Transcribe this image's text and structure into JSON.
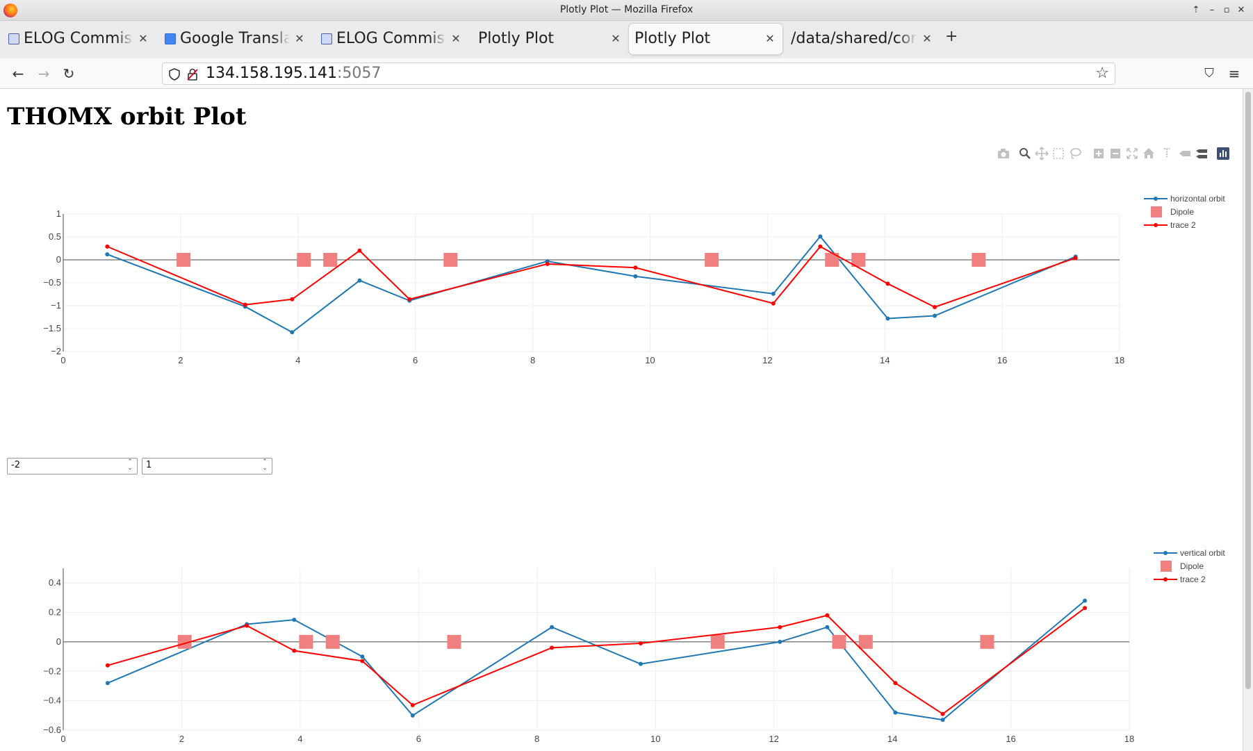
{
  "window": {
    "title": "Plotly Plot — Mozilla Firefox"
  },
  "tabs": [
    {
      "label": "ELOG Commissioning",
      "favicon": "elog-icon",
      "active": false
    },
    {
      "label": "Google Translate",
      "favicon": "google-translate-icon",
      "active": false
    },
    {
      "label": "ELOG Commissioning",
      "favicon": "elog-icon",
      "active": false
    },
    {
      "label": "Plotly Plot",
      "favicon": "",
      "active": false
    },
    {
      "label": "Plotly Plot",
      "favicon": "",
      "active": true
    },
    {
      "label": "/data/shared/commissioning",
      "favicon": "",
      "active": false
    }
  ],
  "url": {
    "host": "134.158.195.141",
    "port": ":5057"
  },
  "page": {
    "title": "THOMX orbit Plot"
  },
  "inputs": {
    "ymin": "-2",
    "ymax": "1"
  },
  "colors": {
    "orbit": "#1f77b4",
    "trace2": "#ff0000",
    "dipole": "#f08080"
  },
  "chart_data": [
    {
      "type": "line",
      "xlim": [
        0,
        18
      ],
      "ylim": [
        -2,
        1
      ],
      "xticks": [
        "0",
        "2",
        "4",
        "6",
        "8",
        "10",
        "12",
        "14",
        "16",
        "18"
      ],
      "yticks": [
        "1",
        "0.5",
        "0",
        "−0.5",
        "−1",
        "−1.5",
        "−2"
      ],
      "yticks_values": [
        1,
        0.5,
        0,
        -0.5,
        -1,
        -1.5,
        -2
      ],
      "grid": true,
      "legend_position": "top-right",
      "series": [
        {
          "name": "horizontal orbit",
          "color": "#1f77b4",
          "x": [
            0.75,
            3.1,
            3.9,
            5.05,
            5.9,
            8.25,
            9.75,
            12.1,
            12.9,
            14.05,
            14.85,
            17.25
          ],
          "y": [
            0.12,
            -1.02,
            -1.58,
            -0.45,
            -0.89,
            -0.03,
            -0.36,
            -0.74,
            0.51,
            -1.28,
            -1.22,
            0.07
          ]
        },
        {
          "name": "Dipole",
          "color": "#f08080",
          "marker": "square",
          "x": [
            2.05,
            4.1,
            4.55,
            6.6,
            11.05,
            13.1,
            13.55,
            15.6
          ],
          "y": [
            0,
            0,
            0,
            0,
            0,
            0,
            0,
            0
          ]
        },
        {
          "name": "trace 2",
          "color": "#ff0000",
          "x": [
            0.75,
            3.1,
            3.9,
            5.05,
            5.9,
            8.25,
            9.75,
            12.1,
            12.9,
            14.05,
            14.85,
            17.25
          ],
          "y": [
            0.29,
            -0.98,
            -0.86,
            0.2,
            -0.86,
            -0.09,
            -0.17,
            -0.95,
            0.29,
            -0.52,
            -1.03,
            0.04
          ]
        }
      ]
    },
    {
      "type": "line",
      "xlim": [
        0,
        18
      ],
      "ylim": [
        -0.6,
        0.5
      ],
      "xticks": [
        "0",
        "2",
        "4",
        "6",
        "8",
        "10",
        "12",
        "14",
        "16",
        "18"
      ],
      "yticks": [
        "0.4",
        "0.2",
        "0",
        "−0.2",
        "−0.4",
        "−0.6"
      ],
      "yticks_values": [
        0.4,
        0.2,
        0,
        -0.2,
        -0.4,
        -0.6
      ],
      "grid": true,
      "legend_position": "top-right",
      "series": [
        {
          "name": "vertical orbit",
          "color": "#1f77b4",
          "x": [
            0.75,
            3.1,
            3.9,
            5.05,
            5.9,
            8.25,
            9.75,
            12.1,
            12.9,
            14.05,
            14.85,
            17.25
          ],
          "y": [
            -0.28,
            0.12,
            0.15,
            -0.1,
            -0.5,
            0.1,
            -0.15,
            0.0,
            0.1,
            -0.48,
            -0.53,
            0.28
          ]
        },
        {
          "name": "Dipole",
          "color": "#f08080",
          "marker": "square",
          "x": [
            2.05,
            4.1,
            4.55,
            6.6,
            11.05,
            13.1,
            13.55,
            15.6
          ],
          "y": [
            0,
            0,
            0,
            0,
            0,
            0,
            0,
            0
          ]
        },
        {
          "name": "trace 2",
          "color": "#ff0000",
          "x": [
            0.75,
            3.1,
            3.9,
            5.05,
            5.9,
            8.25,
            9.75,
            12.1,
            12.9,
            14.05,
            14.85,
            17.25
          ],
          "y": [
            -0.16,
            0.11,
            -0.06,
            -0.13,
            -0.43,
            -0.04,
            -0.01,
            0.1,
            0.18,
            -0.28,
            -0.49,
            0.23
          ]
        }
      ]
    }
  ]
}
